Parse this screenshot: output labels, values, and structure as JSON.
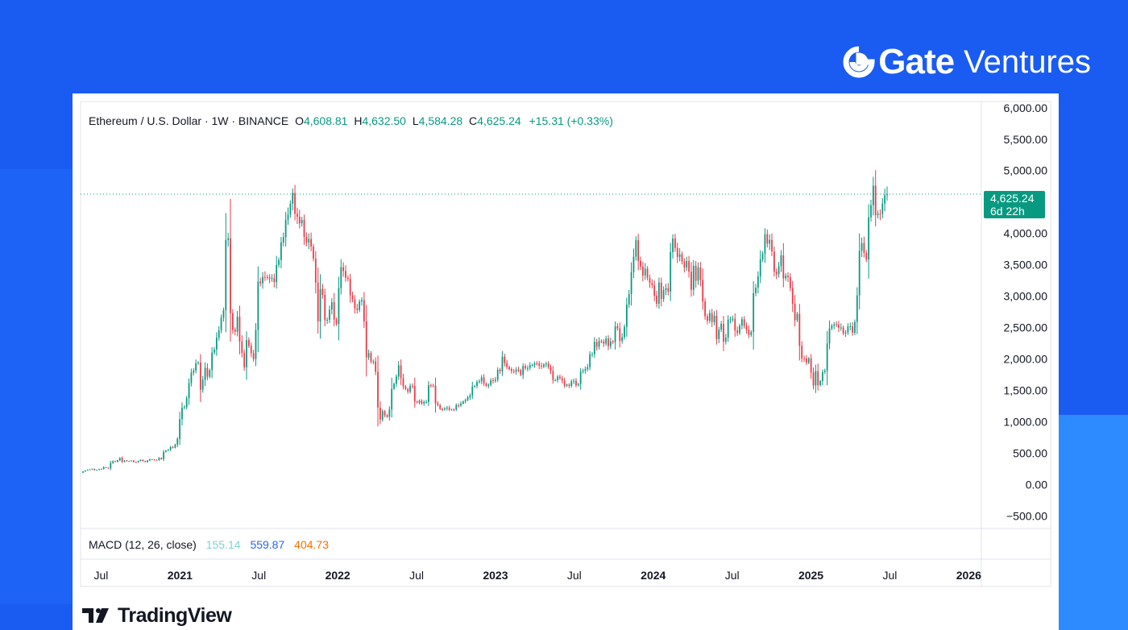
{
  "brand": {
    "name_bold": "Gate",
    "name_light": "Ventures",
    "icon": "gate-logo-icon"
  },
  "header": {
    "symbol": "Ethereum / U.S. Dollar · 1W · BINANCE",
    "open_label": "O",
    "open": "4,608.81",
    "high_label": "H",
    "high": "4,632.50",
    "low_label": "L",
    "low": "4,584.28",
    "close_label": "C",
    "close": "4,625.24",
    "change": "+15.31 (+0.33%)"
  },
  "price_tag": {
    "price": "4,625.24",
    "countdown": "6d 22h"
  },
  "macd": {
    "label": "MACD (12, 26, close)",
    "v1": "155.14",
    "v2": "559.87",
    "v3": "404.73"
  },
  "footer": {
    "logo_text": "TradingView",
    "icon": "tradingview-logo-icon"
  },
  "colors": {
    "up": "#089981",
    "down": "#f23645",
    "brand_bg": "#1a5cf2",
    "accent_bg": "#2e8bff"
  },
  "chart_data": {
    "type": "candlestick",
    "interval": "1W",
    "ylim": [
      -700,
      6100
    ],
    "y_ticks": [
      "6,000.00",
      "5,500.00",
      "5,000.00",
      "4,000.00",
      "3,500.00",
      "3,000.00",
      "2,500.00",
      "2,000.00",
      "1,500.00",
      "1,000.00",
      "500.00",
      "0.00",
      "−500.00"
    ],
    "x_ticks": [
      "Jul",
      "2021",
      "Jul",
      "2022",
      "Jul",
      "2023",
      "Jul",
      "2024",
      "Jul",
      "2025",
      "Jul",
      "2026"
    ],
    "last_price": 4625.24,
    "series_close_approx": [
      {
        "t": "2020-05",
        "close": 200
      },
      {
        "t": "2020-07",
        "close": 240
      },
      {
        "t": "2020-08",
        "close": 400
      },
      {
        "t": "2020-10",
        "close": 380
      },
      {
        "t": "2020-11",
        "close": 600
      },
      {
        "t": "2021-01",
        "close": 1300
      },
      {
        "t": "2021-02",
        "close": 1500
      },
      {
        "t": "2021-04",
        "close": 2300
      },
      {
        "t": "2021-05",
        "close": 3900
      },
      {
        "t": "2021-06",
        "close": 2200
      },
      {
        "t": "2021-07",
        "close": 2100
      },
      {
        "t": "2021-08",
        "close": 3200
      },
      {
        "t": "2021-09",
        "close": 3400
      },
      {
        "t": "2021-11",
        "close": 4600
      },
      {
        "t": "2021-12",
        "close": 3700
      },
      {
        "t": "2022-01",
        "close": 2600
      },
      {
        "t": "2022-03",
        "close": 3400
      },
      {
        "t": "2022-05",
        "close": 2000
      },
      {
        "t": "2022-06",
        "close": 1100
      },
      {
        "t": "2022-08",
        "close": 1700
      },
      {
        "t": "2022-10",
        "close": 1300
      },
      {
        "t": "2022-12",
        "close": 1200
      },
      {
        "t": "2023-02",
        "close": 1600
      },
      {
        "t": "2023-04",
        "close": 1900
      },
      {
        "t": "2023-06",
        "close": 1850
      },
      {
        "t": "2023-08",
        "close": 1650
      },
      {
        "t": "2023-10",
        "close": 1800
      },
      {
        "t": "2023-12",
        "close": 2300
      },
      {
        "t": "2024-02",
        "close": 3000
      },
      {
        "t": "2024-03",
        "close": 3900
      },
      {
        "t": "2024-05",
        "close": 2950
      },
      {
        "t": "2024-06",
        "close": 3800
      },
      {
        "t": "2024-08",
        "close": 2600
      },
      {
        "t": "2024-10",
        "close": 2450
      },
      {
        "t": "2024-11",
        "close": 3400
      },
      {
        "t": "2024-12",
        "close": 3800
      },
      {
        "t": "2025-02",
        "close": 2700
      },
      {
        "t": "2025-03",
        "close": 1900
      },
      {
        "t": "2025-04",
        "close": 1600
      },
      {
        "t": "2025-05",
        "close": 2550
      },
      {
        "t": "2025-06",
        "close": 2500
      },
      {
        "t": "2025-07",
        "close": 3800
      },
      {
        "t": "2025-08",
        "close": 4600
      },
      {
        "t": "2025-09",
        "close": 4625
      }
    ],
    "candles": [
      [
        189,
        209
      ],
      [
        209,
        225
      ],
      [
        225,
        236
      ],
      [
        236,
        240
      ],
      [
        240,
        249
      ],
      [
        249,
        229
      ],
      [
        229,
        233
      ],
      [
        233,
        247
      ],
      [
        247,
        249
      ],
      [
        249,
        277
      ],
      [
        277,
        268
      ],
      [
        268,
        257
      ],
      [
        257,
        344
      ],
      [
        344,
        372
      ],
      [
        372,
        361
      ],
      [
        361,
        388
      ],
      [
        388,
        424
      ],
      [
        424,
        363
      ],
      [
        363,
        381
      ],
      [
        381,
        372
      ],
      [
        372,
        375
      ],
      [
        375,
        381
      ],
      [
        381,
        358
      ],
      [
        358,
        353
      ],
      [
        353,
        373
      ],
      [
        373,
        394
      ],
      [
        394,
        375
      ],
      [
        375,
        359
      ],
      [
        359,
        381
      ],
      [
        381,
        402
      ],
      [
        402,
        398
      ],
      [
        398,
        392
      ],
      [
        392,
        391
      ],
      [
        391,
        423
      ],
      [
        423,
        403
      ],
      [
        403,
        521
      ],
      [
        521,
        542
      ],
      [
        542,
        555
      ],
      [
        555,
        597
      ],
      [
        597,
        587
      ],
      [
        587,
        637
      ],
      [
        637,
        727
      ],
      [
        727,
        1039
      ],
      [
        1039,
        1225
      ],
      [
        1225,
        1231
      ],
      [
        1231,
        1377
      ],
      [
        1377,
        1615
      ],
      [
        1615,
        1782
      ],
      [
        1782,
        1814
      ],
      [
        1814,
        1930
      ],
      [
        1930,
        1942
      ],
      [
        1942,
        1511
      ],
      [
        1511,
        1669
      ],
      [
        1669,
        1858
      ],
      [
        1858,
        1717
      ],
      [
        1717,
        1822
      ],
      [
        1822,
        2101
      ],
      [
        2101,
        2150
      ],
      [
        2150,
        2339
      ],
      [
        2339,
        2457
      ],
      [
        2457,
        2658
      ],
      [
        2658,
        2775
      ],
      [
        2775,
        3893
      ],
      [
        3893,
        3921
      ],
      [
        3921,
        2730
      ],
      [
        2730,
        2465
      ],
      [
        2465,
        2434
      ],
      [
        2434,
        2672
      ],
      [
        2672,
        2280
      ],
      [
        2280,
        2095
      ],
      [
        2095,
        1867
      ],
      [
        1867,
        2302
      ],
      [
        2302,
        2209
      ],
      [
        2209,
        2091
      ],
      [
        2091,
        1998
      ],
      [
        1998,
        2460
      ],
      [
        2460,
        3233
      ],
      [
        3233,
        3205
      ],
      [
        3205,
        3308
      ],
      [
        3308,
        3305
      ],
      [
        3305,
        3300
      ],
      [
        3300,
        3280
      ],
      [
        3280,
        3286
      ],
      [
        3286,
        3225
      ],
      [
        3225,
        3498
      ],
      [
        3498,
        3574
      ],
      [
        3574,
        3856
      ],
      [
        3856,
        3938
      ],
      [
        3938,
        4216
      ],
      [
        4216,
        4299
      ],
      [
        4299,
        4473
      ],
      [
        4473,
        4644
      ],
      [
        4644,
        4312
      ],
      [
        4312,
        4264
      ],
      [
        4264,
        4159
      ],
      [
        4159,
        4214
      ],
      [
        4214,
        3941
      ],
      [
        3941,
        3855
      ],
      [
        3855,
        3910
      ],
      [
        3910,
        3790
      ],
      [
        3790,
        3600
      ],
      [
        3600,
        3218
      ],
      [
        3218,
        2598
      ],
      [
        2598,
        3115
      ],
      [
        3115,
        3020
      ],
      [
        3020,
        2617
      ],
      [
        2617,
        2623
      ],
      [
        2623,
        2787
      ],
      [
        2787,
        2904
      ],
      [
        2904,
        2629
      ],
      [
        2629,
        2557
      ],
      [
        2557,
        3130
      ],
      [
        3130,
        3461
      ],
      [
        3461,
        3401
      ],
      [
        3401,
        3294
      ],
      [
        3294,
        3276
      ],
      [
        3276,
        3015
      ],
      [
        3015,
        2949
      ],
      [
        2949,
        2805
      ],
      [
        2805,
        2779
      ],
      [
        2779,
        2915
      ],
      [
        2915,
        2937
      ],
      [
        2937,
        2598
      ],
      [
        2598,
        2024
      ],
      [
        2024,
        2094
      ],
      [
        2094,
        1958
      ],
      [
        1958,
        1962
      ],
      [
        1962,
        1795
      ],
      [
        1795,
        1227
      ],
      [
        1227,
        1035
      ],
      [
        1035,
        1168
      ],
      [
        1168,
        1103
      ],
      [
        1103,
        1079
      ],
      [
        1079,
        1194
      ],
      [
        1194,
        1525
      ],
      [
        1525,
        1605
      ],
      [
        1605,
        1720
      ],
      [
        1720,
        1899
      ],
      [
        1899,
        1695
      ],
      [
        1695,
        1565
      ],
      [
        1565,
        1520
      ],
      [
        1520,
        1479
      ],
      [
        1479,
        1573
      ],
      [
        1573,
        1570
      ],
      [
        1570,
        1322
      ],
      [
        1322,
        1307
      ],
      [
        1307,
        1335
      ],
      [
        1335,
        1289
      ],
      [
        1289,
        1313
      ],
      [
        1313,
        1315
      ],
      [
        1315,
        1583
      ],
      [
        1583,
        1576
      ],
      [
        1576,
        1574
      ],
      [
        1574,
        1294
      ],
      [
        1294,
        1267
      ],
      [
        1267,
        1203
      ],
      [
        1203,
        1195
      ],
      [
        1195,
        1210
      ],
      [
        1210,
        1224
      ],
      [
        1224,
        1193
      ],
      [
        1193,
        1195
      ],
      [
        1195,
        1194
      ],
      [
        1194,
        1265
      ],
      [
        1265,
        1258
      ],
      [
        1258,
        1290
      ],
      [
        1290,
        1322
      ],
      [
        1322,
        1349
      ],
      [
        1349,
        1387
      ],
      [
        1387,
        1419
      ],
      [
        1419,
        1562
      ],
      [
        1562,
        1568
      ],
      [
        1568,
        1635
      ],
      [
        1635,
        1645
      ],
      [
        1645,
        1706
      ],
      [
        1706,
        1607
      ],
      [
        1607,
        1571
      ],
      [
        1571,
        1588
      ],
      [
        1588,
        1662
      ],
      [
        1662,
        1652
      ],
      [
        1652,
        1670
      ],
      [
        1670,
        1828
      ],
      [
        1828,
        1802
      ],
      [
        1802,
        2036
      ],
      [
        2036,
        1935
      ],
      [
        1935,
        1871
      ],
      [
        1871,
        1839
      ],
      [
        1839,
        1807
      ],
      [
        1807,
        1797
      ],
      [
        1797,
        1829
      ],
      [
        1829,
        1822
      ],
      [
        1822,
        1745
      ],
      [
        1745,
        1887
      ],
      [
        1887,
        1852
      ],
      [
        1852,
        1856
      ],
      [
        1856,
        1900
      ],
      [
        1900,
        1904
      ],
      [
        1904,
        1929
      ],
      [
        1929,
        1927
      ],
      [
        1927,
        1891
      ],
      [
        1891,
        1876
      ],
      [
        1876,
        1911
      ],
      [
        1911,
        1927
      ],
      [
        1927,
        1870
      ],
      [
        1870,
        1809
      ],
      [
        1809,
        1662
      ],
      [
        1662,
        1663
      ],
      [
        1663,
        1719
      ],
      [
        1719,
        1693
      ],
      [
        1693,
        1655
      ],
      [
        1655,
        1572
      ],
      [
        1572,
        1590
      ],
      [
        1590,
        1570
      ],
      [
        1570,
        1643
      ],
      [
        1643,
        1652
      ],
      [
        1652,
        1580
      ],
      [
        1580,
        1601
      ],
      [
        1601,
        1796
      ],
      [
        1796,
        1811
      ],
      [
        1811,
        1837
      ],
      [
        1837,
        1870
      ],
      [
        1870,
        2074
      ],
      [
        2074,
        2077
      ],
      [
        2077,
        2271
      ],
      [
        2271,
        2195
      ],
      [
        2195,
        2285
      ],
      [
        2285,
        2277
      ],
      [
        2277,
        2244
      ],
      [
        2244,
        2324
      ],
      [
        2324,
        2205
      ],
      [
        2205,
        2278
      ],
      [
        2278,
        2266
      ],
      [
        2266,
        2520
      ],
      [
        2520,
        2489
      ],
      [
        2489,
        2287
      ],
      [
        2287,
        2348
      ],
      [
        2348,
        2512
      ],
      [
        2512,
        2865
      ],
      [
        2865,
        3034
      ],
      [
        3034,
        3382
      ],
      [
        3382,
        3629
      ],
      [
        3629,
        3891
      ],
      [
        3891,
        3562
      ],
      [
        3562,
        3472
      ],
      [
        3472,
        3328
      ],
      [
        3328,
        3437
      ],
      [
        3437,
        3292
      ],
      [
        3292,
        3208
      ],
      [
        3208,
        3174
      ],
      [
        3174,
        3008
      ],
      [
        3008,
        2880
      ],
      [
        2880,
        3215
      ],
      [
        3215,
        2956
      ],
      [
        2956,
        3098
      ],
      [
        3098,
        3127
      ],
      [
        3127,
        3073
      ],
      [
        3073,
        3700
      ],
      [
        3700,
        3918
      ],
      [
        3918,
        3767
      ],
      [
        3767,
        3625
      ],
      [
        3625,
        3667
      ],
      [
        3667,
        3550
      ],
      [
        3550,
        3457
      ],
      [
        3457,
        3560
      ],
      [
        3560,
        3390
      ],
      [
        3390,
        3102
      ],
      [
        3102,
        3485
      ],
      [
        3485,
        3245
      ],
      [
        3245,
        3455
      ],
      [
        3455,
        3260
      ],
      [
        3260,
        2915
      ],
      [
        2915,
        2680
      ],
      [
        2680,
        2610
      ],
      [
        2610,
        2731
      ],
      [
        2731,
        2586
      ],
      [
        2586,
        2689
      ],
      [
        2689,
        2318
      ],
      [
        2318,
        2467
      ],
      [
        2467,
        2558
      ],
      [
        2558,
        2275
      ],
      [
        2275,
        2341
      ],
      [
        2341,
        2627
      ],
      [
        2627,
        2633
      ],
      [
        2633,
        2640
      ],
      [
        2640,
        2452
      ],
      [
        2452,
        2413
      ],
      [
        2413,
        2531
      ],
      [
        2531,
        2631
      ],
      [
        2631,
        2525
      ],
      [
        2525,
        2468
      ],
      [
        2468,
        2381
      ],
      [
        2381,
        2431
      ],
      [
        2431,
        3047
      ],
      [
        3047,
        3137
      ],
      [
        3137,
        3314
      ],
      [
        3314,
        3587
      ],
      [
        3587,
        3674
      ],
      [
        3674,
        3986
      ],
      [
        3986,
        3837
      ],
      [
        3837,
        3896
      ],
      [
        3896,
        3712
      ],
      [
        3712,
        3390
      ],
      [
        3390,
        3349
      ],
      [
        3349,
        3479
      ],
      [
        3479,
        3650
      ],
      [
        3650,
        3284
      ],
      [
        3284,
        3327
      ],
      [
        3327,
        3300
      ],
      [
        3300,
        3130
      ],
      [
        3130,
        2880
      ],
      [
        2880,
        2618
      ],
      [
        2618,
        2718
      ],
      [
        2718,
        2208
      ],
      [
        2208,
        2009
      ],
      [
        2009,
        2008
      ],
      [
        2008,
        1940
      ],
      [
        1940,
        2008
      ],
      [
        2008,
        1785
      ],
      [
        1785,
        1578
      ],
      [
        1578,
        1806
      ],
      [
        1806,
        1582
      ],
      [
        1582,
        1648
      ],
      [
        1648,
        1790
      ],
      [
        1790,
        1811
      ],
      [
        1811,
        2247
      ],
      [
        2247,
        2487
      ],
      [
        2487,
        2530
      ],
      [
        2530,
        2550
      ],
      [
        2550,
        2549
      ],
      [
        2549,
        2496
      ],
      [
        2496,
        2501
      ],
      [
        2501,
        2407
      ],
      [
        2407,
        2421
      ],
      [
        2421,
        2521
      ],
      [
        2521,
        2522
      ],
      [
        2522,
        2418
      ],
      [
        2418,
        2588
      ],
      [
        2588,
        3011
      ],
      [
        3011,
        3724
      ],
      [
        3724,
        3846
      ],
      [
        3846,
        3689
      ],
      [
        3689,
        3584
      ],
      [
        3584,
        4255
      ],
      [
        4255,
        4450
      ],
      [
        4450,
        4760
      ],
      [
        4760,
        4291
      ],
      [
        4291,
        4313
      ],
      [
        4313,
        4309
      ],
      [
        4309,
        4474
      ],
      [
        4474,
        4608
      ],
      [
        4608,
        4625
      ]
    ]
  }
}
